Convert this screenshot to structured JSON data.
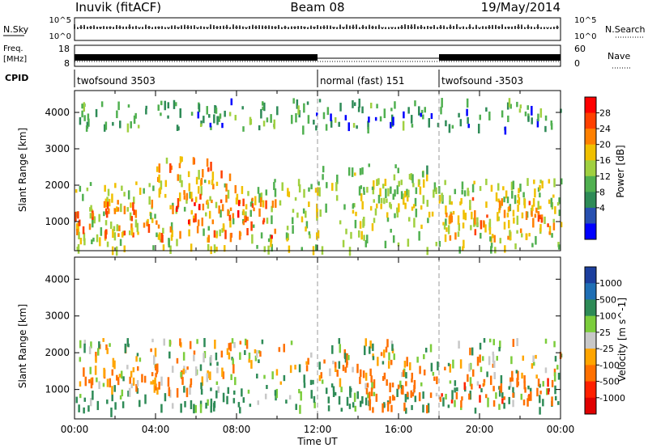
{
  "header": {
    "station": "Inuvik (fitACF)",
    "beam": "Beam 08",
    "date": "19/May/2014"
  },
  "status_panels": {
    "nsky_label": "N.Sky",
    "nsearch_label": "N.Search",
    "freq_label_line1": "Freq.",
    "freq_label_line2": "[MHz]",
    "nave_label": "Nave",
    "cpid_label": "CPID",
    "nsky_ticks": [
      "10^5",
      "10^0"
    ],
    "nsearch_ticks": [
      "10^5",
      "10^0"
    ],
    "freq_ticks": [
      "18",
      "8"
    ],
    "nave_ticks": [
      "60",
      "0"
    ]
  },
  "cpid_segments": [
    {
      "label": "twofsound 3503",
      "start_h": 0
    },
    {
      "label": "normal (fast) 151",
      "start_h": 12
    },
    {
      "label": "twofsound -3503",
      "start_h": 18
    }
  ],
  "chart_data": [
    {
      "type": "heatmap",
      "quantity": "Power",
      "colorbar_label": "Power [dB]",
      "colorbar_ticks": [
        "28",
        "24",
        "20",
        "16",
        "12",
        "8",
        "4"
      ],
      "colorbar_values": [
        28,
        24,
        20,
        16,
        12,
        8,
        4
      ],
      "colorbar_colors": [
        "#ff0000",
        "#ff4000",
        "#ff8000",
        "#f0c000",
        "#a0d040",
        "#50b050",
        "#2e8b57",
        "#2850b0",
        "#0000ff"
      ],
      "ylabel": "Slant Range [km]",
      "yticks": [
        1000,
        2000,
        3000,
        4000
      ],
      "ylim": [
        200,
        4600
      ],
      "xlim": [
        0,
        24
      ],
      "bands": [
        {
          "t0": 0,
          "t1": 24,
          "r0": 300,
          "r1": 2200,
          "value": 14
        },
        {
          "t0": 0,
          "t1": 10,
          "r0": 600,
          "r1": 1700,
          "value": 24
        },
        {
          "t0": 4,
          "t1": 8,
          "r0": 1500,
          "r1": 2800,
          "value": 20
        },
        {
          "t0": 12,
          "t1": 18,
          "r0": 1900,
          "r1": 2600,
          "value": 12
        },
        {
          "t0": 18,
          "t1": 24,
          "r0": 600,
          "r1": 1800,
          "value": 20
        },
        {
          "t0": 0,
          "t1": 24,
          "r0": 3600,
          "r1": 4400,
          "value": 8
        }
      ]
    },
    {
      "type": "heatmap",
      "quantity": "Velocity",
      "colorbar_label": "Velocity [m s^-1]",
      "colorbar_ticks": [
        "1000",
        "500",
        "100",
        "25",
        "-25",
        "-100",
        "-500",
        "-1000"
      ],
      "colorbar_values": [
        1000,
        500,
        100,
        25,
        -25,
        -100,
        -500,
        -1000
      ],
      "colorbar_colors": [
        "#1c3f9e",
        "#1f6fb5",
        "#2e8b57",
        "#7ccd3c",
        "#c8c8c8",
        "#ffa500",
        "#ff7000",
        "#ff2000",
        "#e00000"
      ],
      "ylabel": "Slant Range [km]",
      "yticks": [
        1000,
        2000,
        3000,
        4000
      ],
      "ylim": [
        200,
        4600
      ],
      "xlim": [
        0,
        24
      ],
      "bands": [
        {
          "t0": 0,
          "t1": 24,
          "r0": 1200,
          "r1": 2400,
          "value": 0
        },
        {
          "t0": 0,
          "t1": 24,
          "r0": 500,
          "r1": 1200,
          "value": 200
        },
        {
          "t0": 0,
          "t1": 6,
          "r0": 900,
          "r1": 1700,
          "value": -150
        },
        {
          "t0": 14,
          "t1": 18,
          "r0": 500,
          "r1": 1600,
          "value": -300
        },
        {
          "t0": 18,
          "t1": 24,
          "r0": 700,
          "r1": 1400,
          "value": -400
        }
      ]
    }
  ],
  "xaxis": {
    "ticks": [
      "00:00",
      "04:00",
      "08:00",
      "12:00",
      "16:00",
      "20:00",
      "00:00"
    ],
    "label": "Time UT"
  }
}
